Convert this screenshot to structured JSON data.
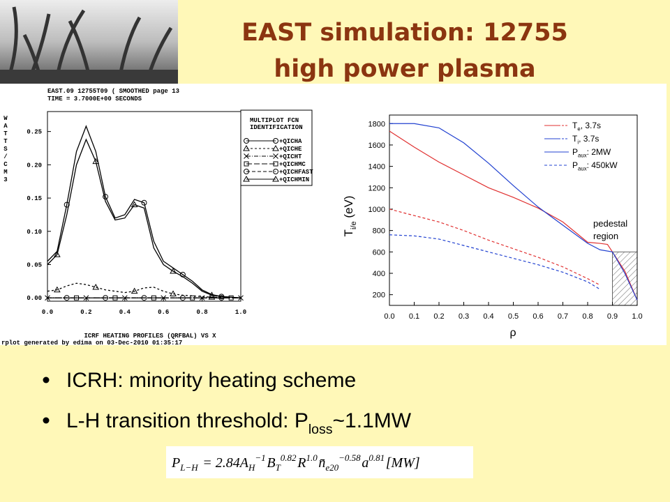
{
  "slide": {
    "title": [
      "EAST simulation: 12755",
      "high power plasma"
    ],
    "bullets": [
      {
        "text": "ICRH: minority heating scheme"
      },
      {
        "text": "L-H transition threshold: P",
        "sub": "loss",
        "tail": "~1.1MW"
      }
    ],
    "formula": [
      {
        "base": "P",
        "sub": "L−H"
      },
      {
        "base": " = 2.84"
      },
      {
        "base": "A",
        "sub": "H",
        "sup": "−1"
      },
      {
        "base": "B",
        "sub": "T",
        "sup": "0.82"
      },
      {
        "base": "R",
        "sup": "1.0"
      },
      {
        "base": "n̄",
        "sub": "e20",
        "sup": "−0.58"
      },
      {
        "base": "a",
        "sup": "0.81"
      },
      {
        "base": "[MW]"
      }
    ]
  },
  "chart_data": [
    {
      "type": "line",
      "header": [
        "EAST.09 12755T09 ( SMOOTHED page 13",
        "TIME = 3.7000E+00 SECONDS"
      ],
      "legend_title": [
        "MULTIPLOT FCN",
        "IDENTIFICATION"
      ],
      "xlabel": "ICRF HEATING PROFILES (QRFBAL) VS X",
      "ylabel": [
        "W",
        "A",
        "T",
        "T",
        "S",
        "/",
        "C",
        "M",
        "3"
      ],
      "footer": "rplot generated by edima on 03-Dec-2010 01:35:17",
      "xlim": [
        0,
        1.0
      ],
      "xticks": [
        {
          "value": 0,
          "label": "0.0"
        },
        0.2,
        0.4,
        0.6,
        0.8,
        {
          "value": 1.0,
          "label": "1.0"
        }
      ],
      "ylim": [
        -0.005,
        0.28
      ],
      "yticks": [
        {
          "value": 0,
          "label": "0.00"
        },
        0.05,
        {
          "value": 0.1,
          "label": "0.10"
        },
        0.15,
        {
          "value": 0.2,
          "label": "0.20"
        },
        0.25
      ],
      "x": [
        0,
        0.05,
        0.1,
        0.15,
        0.2,
        0.25,
        0.3,
        0.35,
        0.4,
        0.45,
        0.5,
        0.55,
        0.6,
        0.65,
        0.7,
        0.75,
        0.8,
        0.85,
        0.9,
        0.95,
        1.0
      ],
      "series": [
        {
          "name": "+QICHA",
          "color": "#000000",
          "dash": "",
          "marker": "circle",
          "values": [
            0.055,
            0.07,
            0.14,
            0.22,
            0.258,
            0.22,
            0.152,
            0.12,
            0.125,
            0.148,
            0.143,
            0.085,
            0.055,
            0.045,
            0.035,
            0.025,
            0.012,
            0.005,
            0.002,
            0.001,
            0
          ]
        },
        {
          "name": "+QICHE",
          "color": "#000000",
          "dash": "3 3",
          "marker": "triangle",
          "values": [
            0.01,
            0.012,
            0.018,
            0.022,
            0.02,
            0.016,
            0.012,
            0.01,
            0.008,
            0.01,
            0.015,
            0.016,
            0.01,
            0.006,
            0.004,
            0.003,
            0.002,
            0.001,
            0.001,
            0,
            0
          ]
        },
        {
          "name": "+QICHT",
          "color": "#000000",
          "dash": "6 2 1 2",
          "marker": "x",
          "values": [
            0,
            0,
            0,
            0,
            0,
            0,
            0,
            0,
            0,
            0,
            0,
            0,
            0,
            0,
            0,
            0,
            0,
            0,
            0,
            0,
            0
          ]
        },
        {
          "name": "+QICHMC",
          "color": "#000000",
          "dash": "8 3",
          "marker": "square",
          "values": [
            0,
            0,
            0,
            0,
            0,
            0,
            0,
            0,
            0,
            0,
            0,
            0,
            0,
            0,
            0,
            0,
            0,
            0,
            0,
            0,
            0
          ]
        },
        {
          "name": "+QICHFAST",
          "color": "#000000",
          "dash": "5 3",
          "marker": "circle",
          "values": [
            0,
            0,
            0,
            0,
            0,
            0,
            0,
            0,
            0,
            0,
            0,
            0,
            0,
            0,
            0,
            0,
            0,
            0,
            0,
            0,
            0
          ]
        },
        {
          "name": "+QICHMIN",
          "color": "#000000",
          "dash": "",
          "marker": "triangle",
          "values": [
            0.05,
            0.065,
            0.125,
            0.2,
            0.238,
            0.205,
            0.145,
            0.117,
            0.12,
            0.14,
            0.135,
            0.075,
            0.05,
            0.04,
            0.032,
            0.022,
            0.01,
            0.004,
            0.002,
            0.001,
            0
          ]
        }
      ]
    },
    {
      "type": "line",
      "xlabel": "ρ",
      "ylabel": {
        "base": "T",
        "sub": "i/e",
        "rest": " (eV)"
      },
      "xlim": [
        0,
        1.0
      ],
      "xticks": [
        {
          "value": 0,
          "label": "0.0"
        },
        0.1,
        0.2,
        0.3,
        0.4,
        0.5,
        0.6,
        0.7,
        0.8,
        0.9,
        {
          "value": 1.0,
          "label": "1.0"
        }
      ],
      "ylim": [
        100,
        1880
      ],
      "yticks": [
        200,
        400,
        600,
        800,
        1000,
        1200,
        1400,
        1600,
        1800
      ],
      "series": [
        {
          "color": "#e03030",
          "dash": "4 3",
          "x": [
            0,
            0.1,
            0.2,
            0.3,
            0.4,
            0.5,
            0.6,
            0.7,
            0.8,
            0.85
          ],
          "values": [
            1000,
            940,
            880,
            800,
            710,
            630,
            550,
            460,
            350,
            290
          ]
        },
        {
          "color": "#2040d0",
          "dash": "4 3",
          "x": [
            0,
            0.1,
            0.2,
            0.3,
            0.4,
            0.5,
            0.6,
            0.7,
            0.8,
            0.85
          ],
          "values": [
            760,
            750,
            720,
            660,
            600,
            540,
            480,
            410,
            320,
            250
          ]
        },
        {
          "color": "#e03030",
          "dash": "",
          "x": [
            0,
            0.1,
            0.2,
            0.3,
            0.4,
            0.5,
            0.6,
            0.7,
            0.8,
            0.85,
            0.88,
            0.9,
            0.95,
            1.0
          ],
          "values": [
            1730,
            1580,
            1440,
            1320,
            1200,
            1110,
            1010,
            880,
            690,
            680,
            670,
            600,
            420,
            150
          ]
        },
        {
          "color": "#2040d0",
          "dash": "",
          "x": [
            0,
            0.1,
            0.2,
            0.3,
            0.4,
            0.5,
            0.6,
            0.7,
            0.8,
            0.85,
            0.9,
            0.95,
            1.0
          ],
          "values": [
            1800,
            1800,
            1760,
            1620,
            1430,
            1220,
            1020,
            850,
            680,
            620,
            600,
            400,
            150
          ]
        }
      ],
      "legend": [
        {
          "base": "T",
          "sub": "e",
          "rest": ", 3.7s",
          "color": "#e03030",
          "style": "both"
        },
        {
          "base": "T",
          "sub": "i",
          "rest": ", 3.7s",
          "color": "#2040d0",
          "style": "both"
        },
        {
          "base": "P",
          "sub": "aux",
          "rest": ": 2MW",
          "color": "#2040d0",
          "style": "solid"
        },
        {
          "base": "P",
          "sub": "aux",
          "rest": ": 450kW",
          "color": "#2040d0",
          "style": "dashed"
        }
      ],
      "pedestal": {
        "label": [
          "pedestal",
          "region"
        ],
        "xrange": [
          0.9,
          1.0
        ],
        "ymax": 600
      }
    }
  ]
}
